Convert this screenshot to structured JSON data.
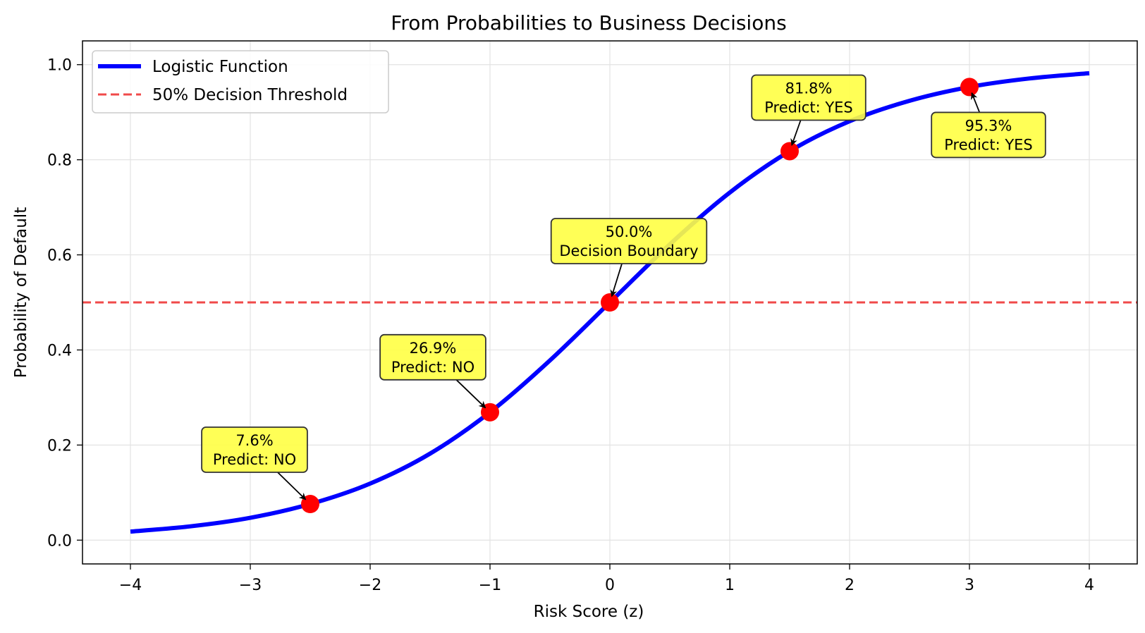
{
  "chart_data": {
    "type": "line",
    "title": "From Probabilities to Business Decisions",
    "xlabel": "Risk Score (z)",
    "ylabel": "Probability of Default",
    "xlim": [
      -4.4,
      4.4
    ],
    "ylim": [
      -0.05,
      1.05
    ],
    "grid": true,
    "legend_position": "top-left",
    "x_ticks": [
      -4,
      -3,
      -2,
      -1,
      0,
      1,
      2,
      3,
      4
    ],
    "x_tick_labels": [
      "−4",
      "−3",
      "−2",
      "−1",
      "0",
      "1",
      "2",
      "3",
      "4"
    ],
    "y_ticks": [
      0.0,
      0.2,
      0.4,
      0.6,
      0.8,
      1.0
    ],
    "y_tick_labels": [
      "0.0",
      "0.2",
      "0.4",
      "0.6",
      "0.8",
      "1.0"
    ],
    "series": [
      {
        "name": "Logistic Function",
        "kind": "line",
        "color": "#0000ff",
        "x": [
          -4.0,
          -3.5,
          -3.0,
          -2.5,
          -2.0,
          -1.5,
          -1.0,
          -0.5,
          0.0,
          0.5,
          1.0,
          1.5,
          2.0,
          2.5,
          3.0,
          3.5,
          4.0
        ],
        "y": [
          0.018,
          0.029,
          0.047,
          0.076,
          0.119,
          0.182,
          0.269,
          0.378,
          0.5,
          0.622,
          0.731,
          0.818,
          0.881,
          0.924,
          0.953,
          0.971,
          0.982
        ]
      },
      {
        "name": "50% Decision Threshold",
        "kind": "hline",
        "color": "#f04a4a",
        "y": 0.5
      }
    ],
    "points": [
      {
        "x": -2.5,
        "y": 0.076,
        "line1": "7.6%",
        "line2": "Predict: NO"
      },
      {
        "x": -1.0,
        "y": 0.269,
        "line1": "26.9%",
        "line2": "Predict: NO"
      },
      {
        "x": 0.0,
        "y": 0.5,
        "line1": "50.0%",
        "line2": "Decision Boundary"
      },
      {
        "x": 1.5,
        "y": 0.818,
        "line1": "81.8%",
        "line2": "Predict: YES"
      },
      {
        "x": 3.0,
        "y": 0.953,
        "line1": "95.3%",
        "line2": "Predict: YES"
      }
    ],
    "point_color": "#ff0000",
    "annotation_fill": "#ffff44"
  }
}
